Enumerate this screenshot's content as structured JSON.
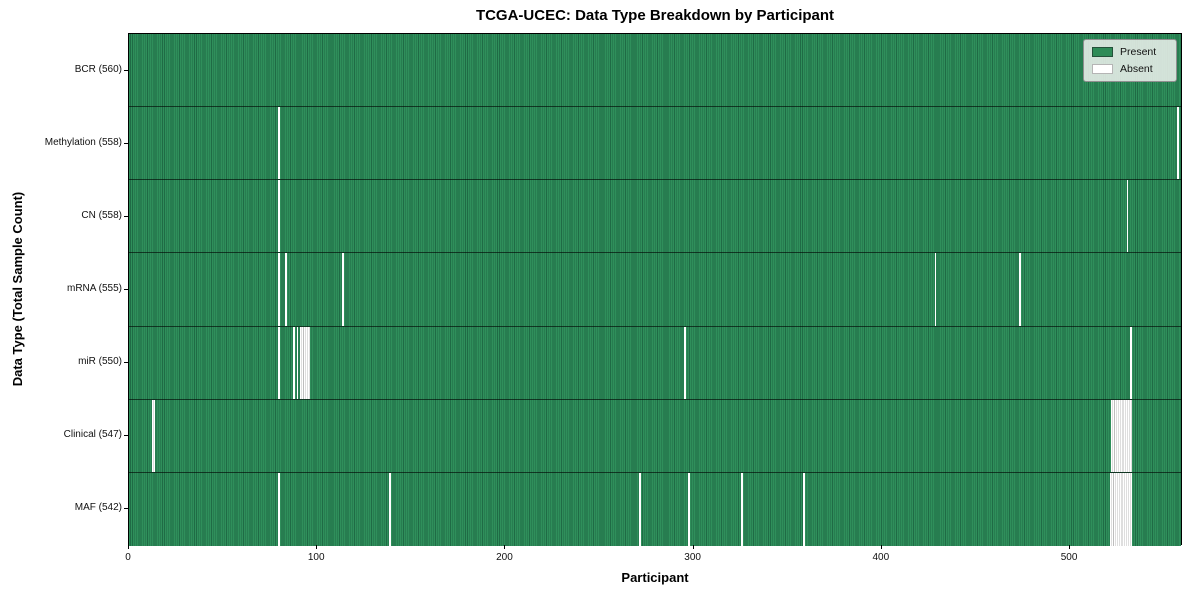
{
  "chart_data": {
    "type": "heatmap",
    "title": "TCGA-UCEC: Data Type Breakdown by Participant",
    "xlabel": "Participant",
    "ylabel": "Data Type (Total Sample Count)",
    "x_ticks": [
      0,
      100,
      200,
      300,
      400,
      500
    ],
    "xlim": [
      0,
      560
    ],
    "n_participants": 560,
    "grid": false,
    "legend_position": "upper right",
    "legend": [
      {
        "label": "Present",
        "color": "#2e8b57"
      },
      {
        "label": "Absent",
        "color": "#ffffff"
      }
    ],
    "colors": {
      "present": "#2e8b57",
      "present_edge": "#1f6b45",
      "absent": "#ffffff",
      "row_separator": "#000000"
    },
    "rows": [
      {
        "label": "BCR (560)",
        "data_type": "BCR",
        "present_count": 560,
        "absent_participants": []
      },
      {
        "label": "Methylation (558)",
        "data_type": "Methylation",
        "present_count": 558,
        "absent_participants": [
          79,
          557
        ]
      },
      {
        "label": "CN (558)",
        "data_type": "CN",
        "present_count": 558,
        "absent_participants": [
          79,
          530
        ]
      },
      {
        "label": "mRNA (555)",
        "data_type": "mRNA",
        "present_count": 555,
        "absent_participants": [
          79,
          83,
          113,
          428,
          473
        ]
      },
      {
        "label": "miR (550)",
        "data_type": "miR",
        "present_count": 550,
        "absent_participants": [
          79,
          87,
          89,
          91,
          92,
          93,
          94,
          95,
          295,
          532
        ]
      },
      {
        "label": "Clinical (547)",
        "data_type": "Clinical",
        "present_count": 547,
        "absent_participants": [
          12,
          13,
          522,
          523,
          524,
          525,
          526,
          527,
          528,
          529,
          530,
          531,
          532
        ]
      },
      {
        "label": "MAF (542)",
        "data_type": "MAF",
        "present_count": 542,
        "absent_participants": [
          79,
          138,
          271,
          297,
          325,
          358,
          521,
          522,
          523,
          524,
          525,
          526,
          527,
          528,
          529,
          530,
          531,
          532
        ]
      }
    ]
  }
}
